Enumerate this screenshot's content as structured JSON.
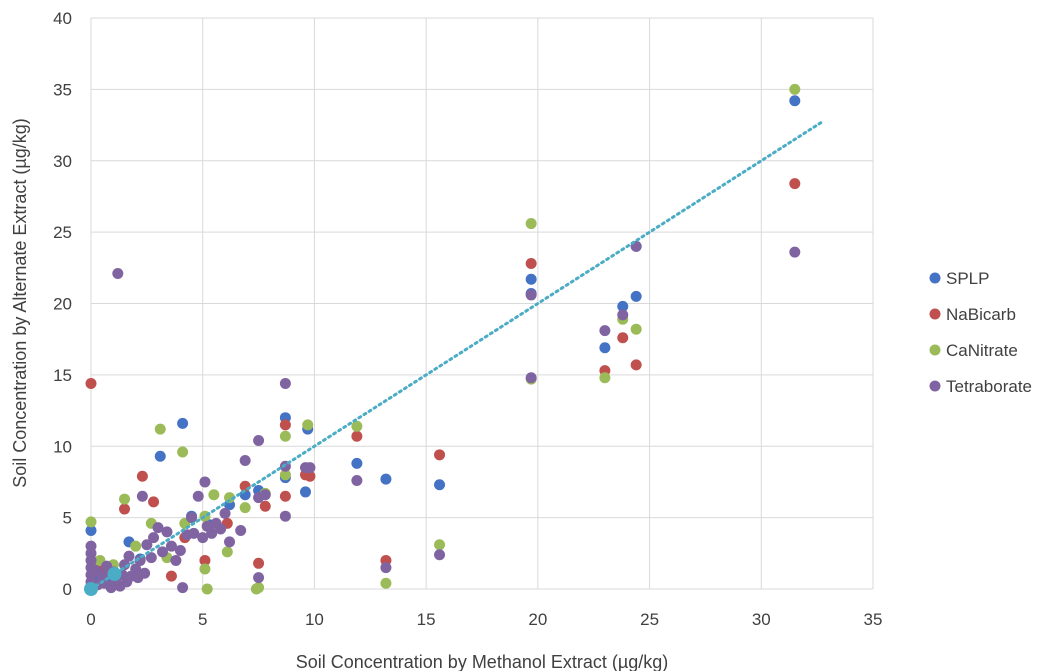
{
  "chart_data": {
    "type": "scatter",
    "title": "",
    "xlabel": "Soil Concentration by Methanol Extract (µg/kg)",
    "ylabel": "Soil Concentration by Alternate Extract (µg/kg)",
    "xlim": [
      0,
      35
    ],
    "ylim": [
      0,
      40
    ],
    "xticks": [
      "0",
      "5",
      "10",
      "15",
      "20",
      "25",
      "30",
      "35"
    ],
    "yticks": [
      "0",
      "5",
      "10",
      "15",
      "20",
      "25",
      "30",
      "35",
      "40"
    ],
    "grid": true,
    "legend_position": "right",
    "series": [
      {
        "name": "SPLP",
        "color": "#4472c4",
        "points": [
          [
            0,
            4.1
          ],
          [
            0.1,
            0.5
          ],
          [
            0.3,
            1.0
          ],
          [
            0.5,
            1.5
          ],
          [
            0.8,
            0.8
          ],
          [
            1.7,
            3.3
          ],
          [
            2.2,
            2.1
          ],
          [
            3.1,
            9.3
          ],
          [
            4.1,
            11.6
          ],
          [
            4.5,
            5.1
          ],
          [
            5.3,
            4.5
          ],
          [
            6.2,
            5.9
          ],
          [
            6.9,
            6.6
          ],
          [
            7.5,
            6.9
          ],
          [
            8.7,
            12.0
          ],
          [
            8.7,
            7.8
          ],
          [
            9.6,
            6.8
          ],
          [
            9.7,
            11.2
          ],
          [
            11.9,
            8.8
          ],
          [
            13.2,
            7.7
          ],
          [
            15.6,
            7.3
          ],
          [
            19.7,
            21.7
          ],
          [
            19.7,
            20.7
          ],
          [
            23.0,
            16.9
          ],
          [
            23.8,
            19.8
          ],
          [
            24.4,
            20.5
          ],
          [
            24.4,
            24.0
          ],
          [
            31.5,
            34.2
          ]
        ]
      },
      {
        "name": "NaBicarb",
        "color": "#c0504d",
        "points": [
          [
            0,
            14.4
          ],
          [
            0.3,
            1.7
          ],
          [
            0.7,
            1.5
          ],
          [
            1.5,
            5.6
          ],
          [
            2.3,
            7.9
          ],
          [
            2.8,
            6.1
          ],
          [
            3.6,
            0.9
          ],
          [
            4.2,
            3.6
          ],
          [
            5.1,
            2.0
          ],
          [
            6.1,
            4.6
          ],
          [
            6.9,
            7.2
          ],
          [
            7.5,
            1.8
          ],
          [
            7.8,
            5.8
          ],
          [
            8.7,
            11.5
          ],
          [
            8.7,
            6.5
          ],
          [
            9.6,
            8.0
          ],
          [
            9.8,
            7.9
          ],
          [
            11.9,
            10.7
          ],
          [
            13.2,
            2.0
          ],
          [
            15.6,
            9.4
          ],
          [
            19.7,
            22.8
          ],
          [
            23.0,
            15.3
          ],
          [
            23.8,
            17.6
          ],
          [
            24.4,
            15.7
          ],
          [
            31.5,
            28.4
          ]
        ]
      },
      {
        "name": "CaNitrate",
        "color": "#9bbb59",
        "points": [
          [
            0,
            4.7
          ],
          [
            0.4,
            2.0
          ],
          [
            1.0,
            1.7
          ],
          [
            1.5,
            6.3
          ],
          [
            2.0,
            3.0
          ],
          [
            2.7,
            4.6
          ],
          [
            3.1,
            11.2
          ],
          [
            3.4,
            2.2
          ],
          [
            4.1,
            9.6
          ],
          [
            4.2,
            4.6
          ],
          [
            5.1,
            5.1
          ],
          [
            5.1,
            1.4
          ],
          [
            5.2,
            0.0
          ],
          [
            5.5,
            6.6
          ],
          [
            6.1,
            2.6
          ],
          [
            6.2,
            6.4
          ],
          [
            6.9,
            5.7
          ],
          [
            7.4,
            0.0
          ],
          [
            7.5,
            0.1
          ],
          [
            7.8,
            6.7
          ],
          [
            8.7,
            10.7
          ],
          [
            8.7,
            8.0
          ],
          [
            9.7,
            11.5
          ],
          [
            11.9,
            11.4
          ],
          [
            13.2,
            0.4
          ],
          [
            15.6,
            3.1
          ],
          [
            19.7,
            25.6
          ],
          [
            19.7,
            14.7
          ],
          [
            23.0,
            14.8
          ],
          [
            23.8,
            18.9
          ],
          [
            24.4,
            18.2
          ],
          [
            31.5,
            35.0
          ]
        ]
      },
      {
        "name": "Tetraborate",
        "color": "#8064a2",
        "points": [
          [
            0,
            3.0
          ],
          [
            0,
            2.5
          ],
          [
            0,
            2.0
          ],
          [
            0,
            1.5
          ],
          [
            0,
            1.0
          ],
          [
            0,
            0.5
          ],
          [
            0,
            0.1
          ],
          [
            0.2,
            1.3
          ],
          [
            0.3,
            0.3
          ],
          [
            0.5,
            0.9
          ],
          [
            0.6,
            0.4
          ],
          [
            0.7,
            1.6
          ],
          [
            0.9,
            0.1
          ],
          [
            1.0,
            1.2
          ],
          [
            1.1,
            0.6
          ],
          [
            1.2,
            22.1
          ],
          [
            1.3,
            0.2
          ],
          [
            1.4,
            1.0
          ],
          [
            1.5,
            1.7
          ],
          [
            1.6,
            0.5
          ],
          [
            1.7,
            2.3
          ],
          [
            1.8,
            0.9
          ],
          [
            2.0,
            1.4
          ],
          [
            2.1,
            0.8
          ],
          [
            2.2,
            2.0
          ],
          [
            2.3,
            6.5
          ],
          [
            2.4,
            1.1
          ],
          [
            2.5,
            3.1
          ],
          [
            2.7,
            2.2
          ],
          [
            2.8,
            3.6
          ],
          [
            3.0,
            4.3
          ],
          [
            3.2,
            2.6
          ],
          [
            3.4,
            4.0
          ],
          [
            3.6,
            3.0
          ],
          [
            3.8,
            2.0
          ],
          [
            4.0,
            2.7
          ],
          [
            4.1,
            0.1
          ],
          [
            4.3,
            3.8
          ],
          [
            4.5,
            5.0
          ],
          [
            4.6,
            3.9
          ],
          [
            4.8,
            6.5
          ],
          [
            5.0,
            3.6
          ],
          [
            5.1,
            7.5
          ],
          [
            5.2,
            4.4
          ],
          [
            5.4,
            3.9
          ],
          [
            5.6,
            4.6
          ],
          [
            5.8,
            4.2
          ],
          [
            6.0,
            5.3
          ],
          [
            6.2,
            3.3
          ],
          [
            6.7,
            4.1
          ],
          [
            6.9,
            9.0
          ],
          [
            7.5,
            10.4
          ],
          [
            7.5,
            6.4
          ],
          [
            7.5,
            0.8
          ],
          [
            7.8,
            6.6
          ],
          [
            8.7,
            14.4
          ],
          [
            8.7,
            8.6
          ],
          [
            8.7,
            5.1
          ],
          [
            9.6,
            8.5
          ],
          [
            9.8,
            8.5
          ],
          [
            11.9,
            7.6
          ],
          [
            13.2,
            1.5
          ],
          [
            15.6,
            2.4
          ],
          [
            19.7,
            20.6
          ],
          [
            19.7,
            14.8
          ],
          [
            23.0,
            18.1
          ],
          [
            23.8,
            19.2
          ],
          [
            24.4,
            24.0
          ],
          [
            31.5,
            23.6
          ]
        ]
      }
    ],
    "trendline": {
      "style": "dotted",
      "color": "#4bacc6",
      "from": [
        0,
        0
      ],
      "to": [
        32.8,
        32.8
      ]
    },
    "highlight_points": {
      "color": "#4bacc6",
      "points": [
        [
          0,
          0
        ],
        [
          1.05,
          1.05
        ]
      ]
    }
  }
}
